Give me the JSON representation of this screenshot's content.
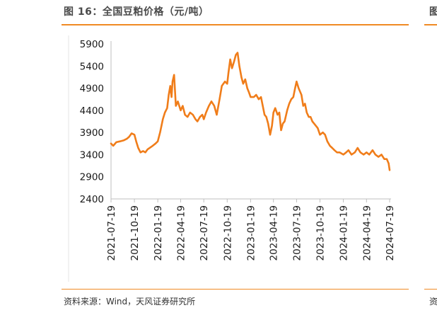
{
  "figure": {
    "title": "图 16：全国豆粕价格（元/吨）",
    "source": "资料来源：Wind，天风证券研究所",
    "edge_title_glyph": "图",
    "edge_source_glyph": "资"
  },
  "colors": {
    "accent": "#f08a24",
    "line": "#f07d1a",
    "axis": "#bfbfbf",
    "text": "#1a1a1a"
  },
  "chart_data": {
    "type": "line",
    "title": "全国豆粕价格（元/吨）",
    "xlabel": "",
    "ylabel": "",
    "ylim": [
      2400,
      5900
    ],
    "yticks": [
      2400,
      2900,
      3400,
      3900,
      4400,
      4900,
      5400,
      5900
    ],
    "xlim": [
      "2021-07-19",
      "2024-07-19"
    ],
    "xticks": [
      "2021-07-19",
      "2021-10-19",
      "2022-01-19",
      "2022-04-19",
      "2022-07-19",
      "2022-10-19",
      "2023-01-19",
      "2023-04-19",
      "2023-07-19",
      "2023-10-19",
      "2024-01-19",
      "2024-04-19",
      "2024-07-19"
    ],
    "grid": false,
    "legend": "none",
    "series": [
      {
        "name": "",
        "x": [
          "2021-07-19",
          "2021-07-28",
          "2021-08-09",
          "2021-08-23",
          "2021-09-06",
          "2021-09-20",
          "2021-09-28",
          "2021-10-08",
          "2021-10-19",
          "2021-10-26",
          "2021-11-03",
          "2021-11-12",
          "2021-11-22",
          "2021-12-01",
          "2021-12-10",
          "2021-12-20",
          "2021-12-30",
          "2022-01-10",
          "2022-01-19",
          "2022-01-28",
          "2022-02-08",
          "2022-02-16",
          "2022-02-25",
          "2022-03-03",
          "2022-03-09",
          "2022-03-14",
          "2022-03-18",
          "2022-03-24",
          "2022-03-31",
          "2022-04-08",
          "2022-04-19",
          "2022-04-27",
          "2022-05-06",
          "2022-05-16",
          "2022-05-26",
          "2022-06-06",
          "2022-06-16",
          "2022-06-24",
          "2022-07-04",
          "2022-07-13",
          "2022-07-19",
          "2022-07-28",
          "2022-08-08",
          "2022-08-18",
          "2022-08-29",
          "2022-09-08",
          "2022-09-19",
          "2022-09-28",
          "2022-10-10",
          "2022-10-19",
          "2022-10-24",
          "2022-10-31",
          "2022-11-07",
          "2022-11-15",
          "2022-11-22",
          "2022-11-29",
          "2022-12-06",
          "2022-12-14",
          "2022-12-21",
          "2022-12-29",
          "2023-01-06",
          "2023-01-13",
          "2023-01-19",
          "2023-02-01",
          "2023-02-10",
          "2023-02-20",
          "2023-03-01",
          "2023-03-08",
          "2023-03-15",
          "2023-03-22",
          "2023-03-29",
          "2023-04-06",
          "2023-04-13",
          "2023-04-19",
          "2023-04-26",
          "2023-05-05",
          "2023-05-12",
          "2023-05-19",
          "2023-05-26",
          "2023-06-02",
          "2023-06-12",
          "2023-06-20",
          "2023-06-28",
          "2023-07-06",
          "2023-07-13",
          "2023-07-19",
          "2023-07-27",
          "2023-08-07",
          "2023-08-14",
          "2023-08-21",
          "2023-08-28",
          "2023-09-05",
          "2023-09-12",
          "2023-09-19",
          "2023-09-26",
          "2023-10-10",
          "2023-10-19",
          "2023-10-30",
          "2023-11-08",
          "2023-11-17",
          "2023-11-27",
          "2023-12-06",
          "2023-12-15",
          "2023-12-25",
          "2024-01-04",
          "2024-01-19",
          "2024-01-30",
          "2024-02-08",
          "2024-02-20",
          "2024-03-04",
          "2024-03-15",
          "2024-03-26",
          "2024-04-08",
          "2024-04-19",
          "2024-04-30",
          "2024-05-13",
          "2024-05-24",
          "2024-06-05",
          "2024-06-17",
          "2024-06-28",
          "2024-07-08",
          "2024-07-15",
          "2024-07-19"
        ],
        "values": [
          3650,
          3600,
          3680,
          3700,
          3720,
          3760,
          3800,
          3880,
          3850,
          3700,
          3550,
          3450,
          3480,
          3450,
          3520,
          3560,
          3600,
          3650,
          3700,
          3900,
          4200,
          4350,
          4450,
          4750,
          4950,
          4700,
          5050,
          5200,
          4500,
          4600,
          4400,
          4500,
          4300,
          4250,
          4350,
          4300,
          4200,
          4150,
          4250,
          4300,
          4200,
          4350,
          4500,
          4600,
          4500,
          4300,
          4650,
          4950,
          5050,
          5000,
          5250,
          5550,
          5350,
          5500,
          5650,
          5700,
          5400,
          5150,
          5000,
          5100,
          4900,
          4800,
          4700,
          4700,
          4750,
          4650,
          4700,
          4500,
          4300,
          4250,
          4100,
          3850,
          4050,
          4350,
          4450,
          4300,
          4350,
          3950,
          4100,
          4150,
          4400,
          4550,
          4650,
          4700,
          4900,
          5050,
          4900,
          4750,
          4500,
          4550,
          4350,
          4250,
          4250,
          4150,
          4100,
          4000,
          3850,
          3900,
          3850,
          3700,
          3600,
          3550,
          3500,
          3450,
          3450,
          3400,
          3450,
          3500,
          3400,
          3450,
          3550,
          3450,
          3400,
          3450,
          3400,
          3500,
          3400,
          3350,
          3400,
          3300,
          3300,
          3200,
          3050
        ]
      }
    ]
  }
}
